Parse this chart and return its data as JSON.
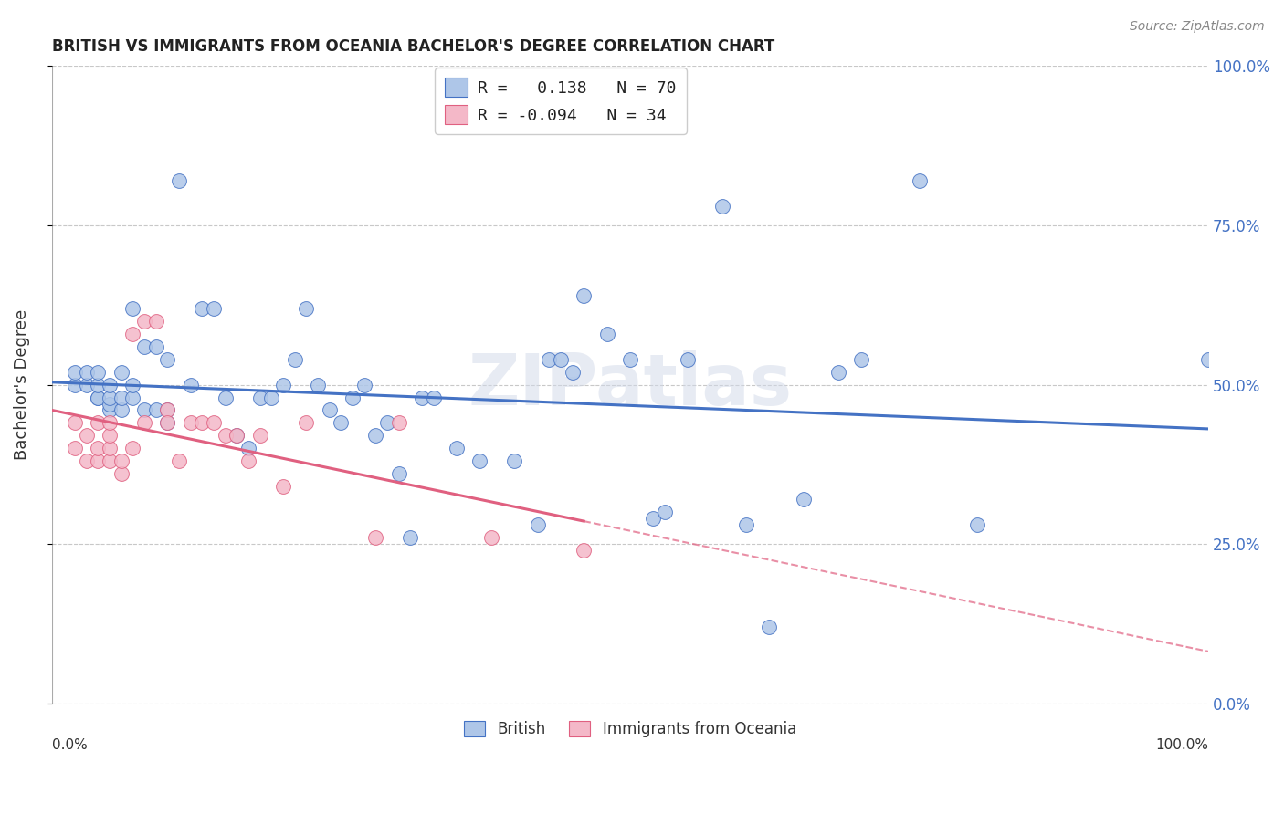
{
  "title": "BRITISH VS IMMIGRANTS FROM OCEANIA BACHELOR'S DEGREE CORRELATION CHART",
  "source": "Source: ZipAtlas.com",
  "ylabel": "Bachelor's Degree",
  "ytick_labels": [
    "0.0%",
    "25.0%",
    "50.0%",
    "75.0%",
    "100.0%"
  ],
  "ytick_values": [
    0.0,
    0.25,
    0.5,
    0.75,
    1.0
  ],
  "xlim": [
    0.0,
    1.0
  ],
  "ylim": [
    0.0,
    1.0
  ],
  "british_color": "#aec6e8",
  "oceania_color": "#f4b8c8",
  "trendline_british_color": "#4472c4",
  "trendline_oceania_color": "#e06080",
  "legend_label1": "R =   0.138   N = 70",
  "legend_label2": "R = -0.094   N = 34",
  "watermark": "ZIPatlas",
  "background_color": "#ffffff",
  "grid_color": "#c8c8c8",
  "legend_items": [
    "British",
    "Immigrants from Oceania"
  ],
  "british_x": [
    0.02,
    0.02,
    0.03,
    0.03,
    0.04,
    0.04,
    0.04,
    0.04,
    0.05,
    0.05,
    0.05,
    0.05,
    0.06,
    0.06,
    0.06,
    0.07,
    0.07,
    0.07,
    0.08,
    0.08,
    0.09,
    0.09,
    0.1,
    0.1,
    0.1,
    0.11,
    0.12,
    0.13,
    0.14,
    0.15,
    0.16,
    0.17,
    0.18,
    0.19,
    0.2,
    0.21,
    0.22,
    0.23,
    0.24,
    0.25,
    0.26,
    0.27,
    0.28,
    0.29,
    0.3,
    0.31,
    0.32,
    0.33,
    0.35,
    0.37,
    0.4,
    0.42,
    0.43,
    0.44,
    0.45,
    0.46,
    0.48,
    0.5,
    0.52,
    0.53,
    0.55,
    0.58,
    0.6,
    0.62,
    0.65,
    0.68,
    0.7,
    0.75,
    0.8,
    1.0
  ],
  "british_y": [
    0.5,
    0.52,
    0.5,
    0.52,
    0.48,
    0.48,
    0.5,
    0.52,
    0.46,
    0.47,
    0.48,
    0.5,
    0.46,
    0.48,
    0.52,
    0.48,
    0.5,
    0.62,
    0.46,
    0.56,
    0.46,
    0.56,
    0.44,
    0.46,
    0.54,
    0.82,
    0.5,
    0.62,
    0.62,
    0.48,
    0.42,
    0.4,
    0.48,
    0.48,
    0.5,
    0.54,
    0.62,
    0.5,
    0.46,
    0.44,
    0.48,
    0.5,
    0.42,
    0.44,
    0.36,
    0.26,
    0.48,
    0.48,
    0.4,
    0.38,
    0.38,
    0.28,
    0.54,
    0.54,
    0.52,
    0.64,
    0.58,
    0.54,
    0.29,
    0.3,
    0.54,
    0.78,
    0.28,
    0.12,
    0.32,
    0.52,
    0.54,
    0.82,
    0.28,
    0.54
  ],
  "oceania_x": [
    0.02,
    0.02,
    0.03,
    0.03,
    0.04,
    0.04,
    0.04,
    0.05,
    0.05,
    0.05,
    0.05,
    0.06,
    0.06,
    0.07,
    0.07,
    0.08,
    0.08,
    0.09,
    0.1,
    0.1,
    0.11,
    0.12,
    0.13,
    0.14,
    0.15,
    0.16,
    0.17,
    0.18,
    0.2,
    0.22,
    0.28,
    0.3,
    0.38,
    0.46
  ],
  "oceania_y": [
    0.44,
    0.4,
    0.42,
    0.38,
    0.38,
    0.4,
    0.44,
    0.38,
    0.4,
    0.42,
    0.44,
    0.36,
    0.38,
    0.4,
    0.58,
    0.44,
    0.6,
    0.6,
    0.46,
    0.44,
    0.38,
    0.44,
    0.44,
    0.44,
    0.42,
    0.42,
    0.38,
    0.42,
    0.34,
    0.44,
    0.26,
    0.44,
    0.26,
    0.24
  ],
  "trendline_british_x0": 0.0,
  "trendline_british_y0": 0.44,
  "trendline_british_x1": 1.0,
  "trendline_british_y1": 0.52,
  "trendline_oceania_x0": 0.0,
  "trendline_oceania_y0": 0.42,
  "trendline_oceania_x1": 0.38,
  "trendline_oceania_y1": 0.3,
  "trendline_oceania_dash_x0": 0.38,
  "trendline_oceania_dash_y0": 0.3,
  "trendline_oceania_dash_x1": 1.0,
  "trendline_oceania_dash_y1": 0.08
}
